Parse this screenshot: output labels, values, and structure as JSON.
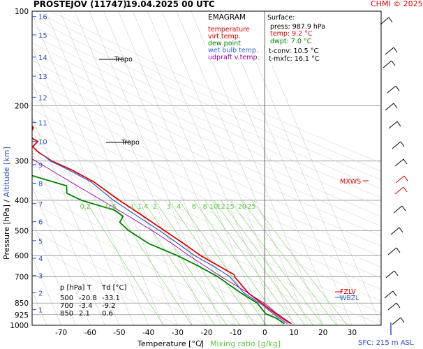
{
  "header": {
    "station": "PROSTEJOV (11747)",
    "datetime": "19.04.2025 00 UTC",
    "credit": "CHMI © 2025"
  },
  "legend": {
    "title": "EMAGRAM",
    "items": [
      {
        "label": "temperature",
        "color": "#e00000"
      },
      {
        "label": "virt.temp.",
        "color": "#e00000"
      },
      {
        "label": "dew point",
        "color": "#008000"
      },
      {
        "label": "wet bulb temp.",
        "color": "#3060d0"
      },
      {
        "label": "udpraft v.temp.",
        "color": "#a000a0"
      }
    ]
  },
  "surface": {
    "title": "Surface:",
    "press": "press: 987.9 hPa",
    "temp": "temp: 9.2 °C",
    "dwpt": "dwpt: 7.0 °C",
    "tconv": "t-conv: 10.5 °C",
    "tmxfc": "t-mxfc: 16.1 °C"
  },
  "table": {
    "headers": [
      "p [hPa]",
      "T",
      "Td [°C]"
    ],
    "rows": [
      [
        "500",
        "-20.8",
        "-33.1"
      ],
      [
        "700",
        "-3.4",
        "-9.2"
      ],
      [
        "850",
        "2.1",
        "0.6"
      ]
    ]
  },
  "annotations": {
    "tropo1": "Tropo",
    "tropo2": "Tropo",
    "mxws": "MXWS",
    "fzlv": "FZLV",
    "wbzl": "WBZL",
    "sfc": "SFC: 215 m ASL"
  },
  "colors": {
    "temperature": "#e00000",
    "dewpoint": "#008000",
    "wetbulb": "#3060d0",
    "parcel": "#a000a0",
    "mixing": "#7fd66a",
    "isotherm": "#a0a0a0",
    "altitude_axis": "#3050c0"
  },
  "chart_data": {
    "type": "line",
    "title": "EMAGRAM",
    "xlabel": "Temperature [°C]",
    "xlabel_extra": "Mixing ratio [g/kg]",
    "ylabel": "Pressure [hPa]",
    "ylabel_extra": "Altitude [km]",
    "xlim": [
      -80,
      40
    ],
    "ylim": [
      1000,
      100
    ],
    "y_scale": "log",
    "x_ticks": [
      -70,
      -60,
      -50,
      -40,
      -30,
      -20,
      -10,
      0,
      10,
      20,
      30
    ],
    "y_ticks": [
      100,
      200,
      300,
      400,
      500,
      600,
      700,
      850,
      925,
      1000
    ],
    "altitude_ticks": [
      {
        "km": "1",
        "p": 892
      },
      {
        "km": "2",
        "p": 788
      },
      {
        "km": "3",
        "p": 694
      },
      {
        "km": "4",
        "p": 612
      },
      {
        "km": "5",
        "p": 538
      },
      {
        "km": "6",
        "p": 468
      },
      {
        "km": "7",
        "p": 410
      },
      {
        "km": "8",
        "p": 353
      },
      {
        "km": "9",
        "p": 308
      },
      {
        "km": "10",
        "p": 260
      },
      {
        "km": "11",
        "p": 226
      },
      {
        "km": "12",
        "p": 188
      },
      {
        "km": "13",
        "p": 161
      },
      {
        "km": "14",
        "p": 140
      },
      {
        "km": "15",
        "p": 119
      },
      {
        "km": "16",
        "p": 104
      }
    ],
    "mixing_ratio_labels": [
      "0.2",
      "0.5",
      "1",
      "1.4",
      "2",
      "3",
      "4",
      "6",
      "8",
      "10",
      "12",
      "15",
      "20",
      "25"
    ],
    "mixing_ratio_values": [
      0.2,
      0.5,
      1,
      1.4,
      2,
      3,
      4,
      6,
      8,
      10,
      12,
      15,
      20,
      25
    ],
    "mixing_label_pressure": 400,
    "series": [
      {
        "name": "temperature",
        "points": [
          [
            9.2,
            988
          ],
          [
            6.5,
            940
          ],
          [
            4.5,
            900
          ],
          [
            2.1,
            850
          ],
          [
            -1.0,
            790
          ],
          [
            -3.4,
            700
          ],
          [
            -3.2,
            690
          ],
          [
            -7.0,
            650
          ],
          [
            -12.0,
            600
          ],
          [
            -16.0,
            550
          ],
          [
            -20.8,
            500
          ],
          [
            -26.0,
            450
          ],
          [
            -32.0,
            400
          ],
          [
            -38.0,
            350
          ],
          [
            -44.0,
            320
          ],
          [
            -49.5,
            300
          ],
          [
            -53.0,
            280
          ],
          [
            -54.0,
            270
          ],
          [
            -51.5,
            260
          ],
          [
            -54.0,
            250
          ],
          [
            -51.0,
            235
          ],
          [
            -52.0,
            225
          ],
          [
            -50.5,
            210
          ],
          [
            -52.0,
            200
          ],
          [
            -50.5,
            190
          ],
          [
            -53.5,
            175
          ],
          [
            -50.5,
            165
          ],
          [
            -52.0,
            155
          ],
          [
            -49.5,
            150
          ],
          [
            -50.5,
            140
          ],
          [
            -52.5,
            130
          ],
          [
            -51.5,
            120
          ],
          [
            -53.0,
            110
          ],
          [
            -54.0,
            103
          ]
        ]
      },
      {
        "name": "dew point",
        "points": [
          [
            7.0,
            988
          ],
          [
            5.0,
            950
          ],
          [
            2.0,
            920
          ],
          [
            0.6,
            850
          ],
          [
            -3.5,
            790
          ],
          [
            -9.2,
            700
          ],
          [
            -14.0,
            650
          ],
          [
            -20.0,
            600
          ],
          [
            -28.0,
            550
          ],
          [
            -33.1,
            500
          ],
          [
            -35.0,
            470
          ],
          [
            -33.0,
            450
          ],
          [
            -35.0,
            430
          ],
          [
            -45.0,
            400
          ],
          [
            -49.0,
            380
          ],
          [
            -48.0,
            360
          ],
          [
            -60.0,
            330
          ],
          [
            -66.0,
            300
          ],
          [
            -68.0,
            280
          ],
          [
            -72.0,
            260
          ],
          [
            -77.0,
            240
          ]
        ]
      },
      {
        "name": "wet bulb temp.",
        "points": [
          [
            8.0,
            988
          ],
          [
            5.5,
            940
          ],
          [
            1.5,
            850
          ],
          [
            -2.5,
            790
          ],
          [
            -5.0,
            700
          ],
          [
            -9.0,
            650
          ],
          [
            -14.0,
            600
          ],
          [
            -18.0,
            550
          ],
          [
            -22.5,
            500
          ],
          [
            -28.0,
            450
          ],
          [
            -34.0,
            400
          ],
          [
            -39.0,
            350
          ],
          [
            -45.0,
            320
          ],
          [
            -50.0,
            300
          ],
          [
            -52.0,
            285
          ]
        ]
      },
      {
        "name": "udpraft v.temp.",
        "points": [
          [
            9.5,
            988
          ],
          [
            6.0,
            920
          ],
          [
            3.0,
            850
          ],
          [
            -4.0,
            750
          ],
          [
            -8.0,
            700
          ],
          [
            -16.0,
            600
          ],
          [
            -20.0,
            550
          ],
          [
            -25.0,
            500
          ],
          [
            -31.0,
            450
          ],
          [
            -38.0,
            400
          ],
          [
            -46.0,
            350
          ],
          [
            -55.0,
            300
          ],
          [
            -67.0,
            250
          ],
          [
            -79.0,
            200
          ]
        ]
      }
    ],
    "wind_barbs_on_right": true
  }
}
